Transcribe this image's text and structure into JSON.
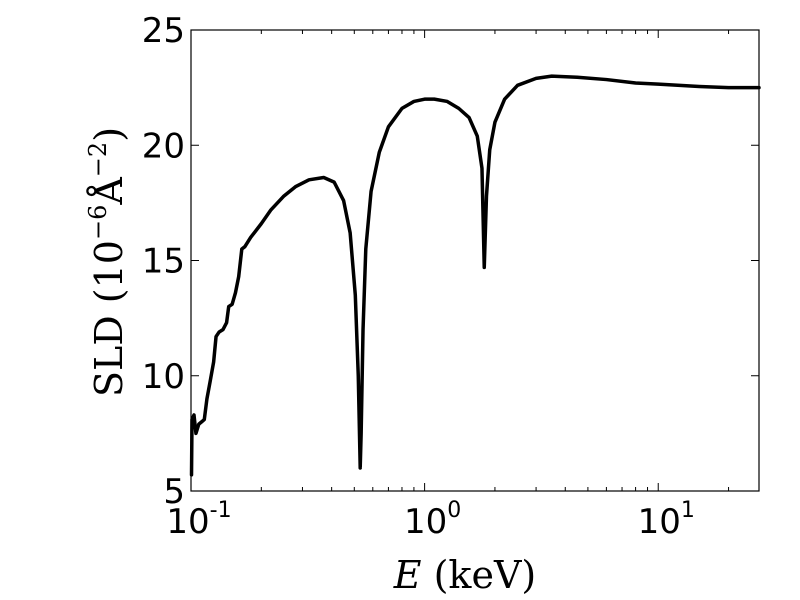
{
  "chart_data": {
    "type": "line",
    "xlabel": {
      "var": "E",
      "unit": "(keV)"
    },
    "ylabel": {
      "text": "SLD (10",
      "exp": "−6",
      "unit": "Å",
      "unit_exp": "−2",
      "close": ")"
    },
    "xscale": "log",
    "xlim": [
      0.1,
      27
    ],
    "ylim": [
      5,
      25
    ],
    "grid": false,
    "legend": "none",
    "y_ticks": [
      {
        "value": 5,
        "label": "5"
      },
      {
        "value": 10,
        "label": "10"
      },
      {
        "value": 15,
        "label": "15"
      },
      {
        "value": 20,
        "label": "20"
      },
      {
        "value": 25,
        "label": "25"
      }
    ],
    "x_ticks": [
      {
        "value": 0.1,
        "base": "10",
        "exp": "-1"
      },
      {
        "value": 1,
        "base": "10",
        "exp": "0"
      },
      {
        "value": 10,
        "base": "10",
        "exp": "1"
      }
    ],
    "series": [
      {
        "color": "#000000",
        "points": [
          [
            0.1005,
            5.7
          ],
          [
            0.101,
            8.1
          ],
          [
            0.103,
            8.3
          ],
          [
            0.105,
            7.5
          ],
          [
            0.108,
            7.9
          ],
          [
            0.111,
            8.0
          ],
          [
            0.114,
            8.1
          ],
          [
            0.117,
            9.0
          ],
          [
            0.121,
            9.8
          ],
          [
            0.125,
            10.6
          ],
          [
            0.128,
            11.7
          ],
          [
            0.132,
            11.9
          ],
          [
            0.137,
            12.0
          ],
          [
            0.142,
            12.3
          ],
          [
            0.145,
            13.0
          ],
          [
            0.15,
            13.1
          ],
          [
            0.155,
            13.6
          ],
          [
            0.16,
            14.3
          ],
          [
            0.165,
            15.5
          ],
          [
            0.17,
            15.6
          ],
          [
            0.18,
            16.0
          ],
          [
            0.2,
            16.6
          ],
          [
            0.22,
            17.2
          ],
          [
            0.25,
            17.8
          ],
          [
            0.28,
            18.2
          ],
          [
            0.32,
            18.5
          ],
          [
            0.37,
            18.6
          ],
          [
            0.41,
            18.4
          ],
          [
            0.45,
            17.6
          ],
          [
            0.48,
            16.2
          ],
          [
            0.505,
            13.5
          ],
          [
            0.52,
            10.0
          ],
          [
            0.53,
            6.0
          ],
          [
            0.535,
            7.5
          ],
          [
            0.545,
            12.0
          ],
          [
            0.56,
            15.5
          ],
          [
            0.59,
            18.0
          ],
          [
            0.64,
            19.7
          ],
          [
            0.7,
            20.8
          ],
          [
            0.8,
            21.6
          ],
          [
            0.9,
            21.9
          ],
          [
            1.0,
            22.0
          ],
          [
            1.1,
            22.0
          ],
          [
            1.25,
            21.9
          ],
          [
            1.4,
            21.6
          ],
          [
            1.55,
            21.2
          ],
          [
            1.68,
            20.4
          ],
          [
            1.76,
            19.0
          ],
          [
            1.8,
            14.7
          ],
          [
            1.84,
            17.8
          ],
          [
            1.9,
            19.8
          ],
          [
            2.0,
            21.0
          ],
          [
            2.2,
            22.0
          ],
          [
            2.5,
            22.6
          ],
          [
            3.0,
            22.9
          ],
          [
            3.5,
            23.0
          ],
          [
            4.5,
            22.95
          ],
          [
            6.0,
            22.85
          ],
          [
            8.0,
            22.7
          ],
          [
            10.0,
            22.65
          ],
          [
            15.0,
            22.55
          ],
          [
            20.0,
            22.5
          ],
          [
            27.0,
            22.5
          ]
        ]
      }
    ]
  }
}
